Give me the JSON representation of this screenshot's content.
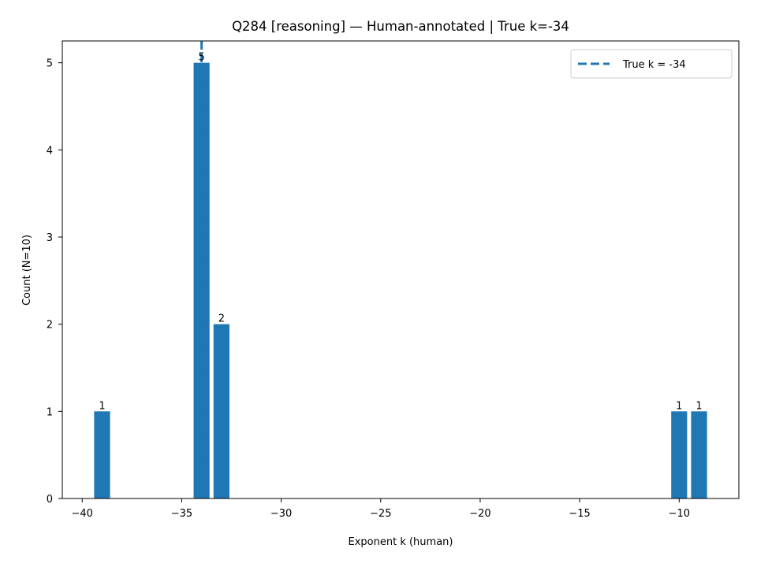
{
  "chart_data": {
    "type": "bar",
    "title": "Q284 [reasoning] — Human-annotated | True k=-34",
    "xlabel": "Exponent k (human)",
    "ylabel": "Count (N=10)",
    "xlim": [
      -41.0,
      -7.0
    ],
    "ylim": [
      0,
      5.25
    ],
    "x_ticks": [
      -40,
      -35,
      -30,
      -25,
      -20,
      -15,
      -10
    ],
    "x_tick_labels": [
      "−40",
      "−35",
      "−30",
      "−25",
      "−20",
      "−15",
      "−10"
    ],
    "y_ticks": [
      0,
      1,
      2,
      3,
      4,
      5
    ],
    "y_tick_labels": [
      "0",
      "1",
      "2",
      "3",
      "4",
      "5"
    ],
    "bar_width": 0.8,
    "bars": [
      {
        "x": -39,
        "value": 1,
        "label": "1"
      },
      {
        "x": -34,
        "value": 5,
        "label": "5"
      },
      {
        "x": -33,
        "value": 2,
        "label": "2"
      },
      {
        "x": -10,
        "value": 1,
        "label": "1"
      },
      {
        "x": -9,
        "value": 1,
        "label": "1"
      }
    ],
    "reference_line": {
      "x": -34,
      "style": "dashed",
      "label": "True k = -34"
    },
    "legend": {
      "position": "top-right",
      "entries": [
        "True k = -34"
      ]
    },
    "grid": false,
    "colors": {
      "bar": "#1f77b4",
      "line": "#1f77b4"
    }
  }
}
